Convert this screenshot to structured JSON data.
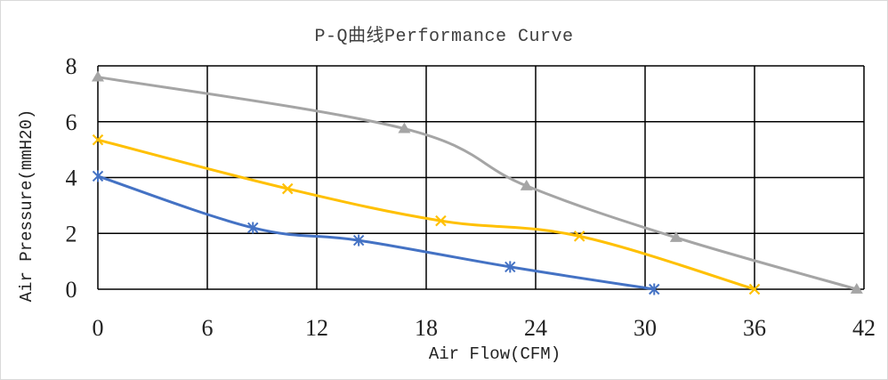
{
  "chart_data": {
    "type": "line",
    "title": "P-Q曲线Performance Curve",
    "xlabel": "Air Flow(CFM)",
    "ylabel": "Air Pressure(mmH20)",
    "xlim": [
      0,
      42
    ],
    "ylim": [
      0,
      8
    ],
    "xticks": [
      "0",
      "6",
      "12",
      "18",
      "24",
      "30",
      "36",
      "42"
    ],
    "yticks": [
      "0",
      "2",
      "4",
      "6",
      "8"
    ],
    "grid": true,
    "legend": "none",
    "series": [
      {
        "color": "#4472C4",
        "marker": "star",
        "points": [
          [
            0,
            4.05
          ],
          [
            8.5,
            2.2
          ],
          [
            14.3,
            1.75
          ],
          [
            22.6,
            0.8
          ],
          [
            30.5,
            0.0
          ]
        ]
      },
      {
        "color": "#FFC000",
        "marker": "x",
        "points": [
          [
            0,
            5.35
          ],
          [
            10.4,
            3.6
          ],
          [
            18.8,
            2.45
          ],
          [
            26.4,
            1.9
          ],
          [
            36.0,
            0.0
          ]
        ]
      },
      {
        "color": "#A5A5A5",
        "marker": "triangle",
        "points": [
          [
            0,
            7.6
          ],
          [
            16.8,
            5.75
          ],
          [
            23.5,
            3.7
          ],
          [
            31.7,
            1.85
          ],
          [
            41.6,
            0.0
          ]
        ]
      }
    ]
  }
}
